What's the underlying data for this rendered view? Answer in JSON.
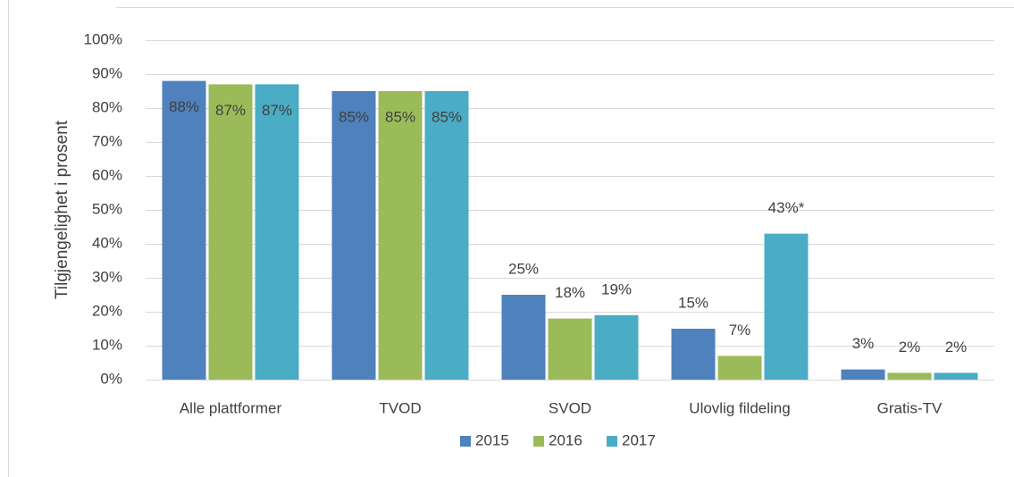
{
  "chart_data": {
    "type": "bar",
    "y_label": "Tilgjengelighet i prosent",
    "categories": [
      "Alle plattformer",
      "TVOD",
      "SVOD",
      "Ulovlig fildeling",
      "Gratis-TV"
    ],
    "series": [
      {
        "name": "2015",
        "color": "#4f81bd",
        "values": [
          88,
          85,
          25,
          15,
          3
        ],
        "value_labels": [
          "88%",
          "85%",
          "25%",
          "15%",
          "3%"
        ]
      },
      {
        "name": "2016",
        "color": "#9bbb59",
        "values": [
          87,
          85,
          18,
          7,
          2
        ],
        "value_labels": [
          "87%",
          "85%",
          "18%",
          "7%",
          "2%"
        ]
      },
      {
        "name": "2017",
        "color": "#4bacc6",
        "values": [
          87,
          85,
          19,
          43,
          2
        ],
        "value_labels": [
          "87%",
          "85%",
          "19%",
          "43%*",
          "2%"
        ]
      }
    ],
    "ylim": [
      0,
      100
    ],
    "yticks": [
      {
        "value": 0,
        "label": "0%"
      },
      {
        "value": 10,
        "label": "10%"
      },
      {
        "value": 20,
        "label": "20%"
      },
      {
        "value": 30,
        "label": "30%"
      },
      {
        "value": 40,
        "label": "40%"
      },
      {
        "value": 50,
        "label": "50%"
      },
      {
        "value": 60,
        "label": "60%"
      },
      {
        "value": 70,
        "label": "70%"
      },
      {
        "value": 80,
        "label": "80%"
      },
      {
        "value": 90,
        "label": "90%"
      },
      {
        "value": 100,
        "label": "100%"
      }
    ],
    "grid": true,
    "legend": "bottom"
  }
}
